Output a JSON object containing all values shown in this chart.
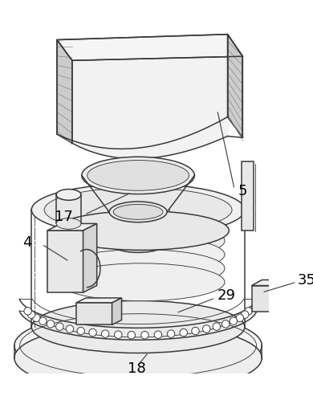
{
  "bg_color": "#ffffff",
  "lc": "#3a3a3a",
  "fc_light": "#f0f0f0",
  "fc_mid": "#e0e0e0",
  "fc_dark": "#cccccc",
  "label_fontsize": 13,
  "figsize": [
    3.9,
    5.03
  ],
  "dpi": 100
}
